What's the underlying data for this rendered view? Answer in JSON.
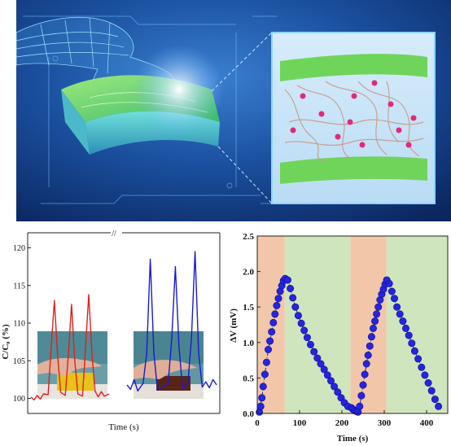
{
  "chart_data": [
    {
      "type": "line",
      "xlabel": "Time (s)",
      "ylabel": "C/C₀ (%)",
      "ylim": [
        98,
        122
      ],
      "yticks": [
        "100",
        "105",
        "110",
        "115",
        "120"
      ],
      "grid": false,
      "axis_break": true,
      "series": [
        {
          "color": "#e0201b",
          "x": [
            0,
            0.4,
            0.8,
            1.2,
            1.6,
            2.2,
            2.6,
            3.0,
            3.4,
            3.8,
            4.4,
            4.8,
            5.2,
            5.6,
            6.0,
            6.6,
            7.0,
            7.4,
            7.8,
            8.2,
            8.6,
            9.0,
            9.4,
            10
          ],
          "values": [
            100.2,
            99.8,
            100.4,
            99.9,
            100.6,
            100.5,
            107,
            113,
            106,
            100.8,
            100.4,
            106,
            112.5,
            105,
            100.6,
            100.3,
            107,
            113.8,
            106,
            101,
            100.2,
            100.9,
            100.3,
            100.6
          ]
        },
        {
          "color": "#1a1ad2",
          "x": [
            0,
            0.4,
            0.8,
            1.2,
            1.8,
            2.2,
            2.6,
            3.0,
            3.4,
            4.0,
            4.6,
            5.0,
            5.4,
            5.8,
            6.2,
            6.8,
            7.2,
            7.6,
            8.0,
            8.4,
            8.8,
            9.2,
            9.6,
            10
          ],
          "values": [
            101.8,
            101.2,
            102.5,
            101,
            102,
            106,
            118.5,
            106,
            101.2,
            101.5,
            102,
            108,
            117.5,
            107,
            101.3,
            102,
            108,
            119.5,
            106,
            101.5,
            102.2,
            101.4,
            102.5,
            101.8
          ]
        }
      ]
    },
    {
      "type": "scatter",
      "xlabel": "Time (s)",
      "ylabel": "ΔV (mV)",
      "xlim": [
        0,
        450
      ],
      "ylim": [
        0,
        2.5
      ],
      "xticks": [
        "0",
        "100",
        "200",
        "300",
        "400"
      ],
      "yticks": [
        "0.0",
        "0.5",
        "1.0",
        "1.5",
        "2.0",
        "2.5"
      ],
      "grid": false,
      "bands": [
        {
          "x0": 0,
          "x1": 65,
          "color": "#f2c6a8"
        },
        {
          "x0": 65,
          "x1": 220,
          "color": "#cfe5bd"
        },
        {
          "x0": 220,
          "x1": 305,
          "color": "#f2c6a8"
        },
        {
          "x0": 305,
          "x1": 450,
          "color": "#cfe5bd"
        }
      ],
      "series": [
        {
          "color": "#2525e0",
          "x": [
            5,
            8,
            11,
            14,
            18,
            22,
            26,
            30,
            34,
            38,
            42,
            46,
            50,
            54,
            58,
            62,
            66,
            72,
            78,
            84,
            90,
            97,
            104,
            111,
            118,
            126,
            134,
            142,
            150,
            158,
            166,
            174,
            182,
            190,
            198,
            206,
            214,
            222,
            226,
            230,
            234,
            238,
            242,
            246,
            250,
            254,
            258,
            262,
            266,
            270,
            274,
            278,
            282,
            286,
            290,
            294,
            298,
            302,
            306,
            312,
            318,
            324,
            330,
            337,
            344,
            351,
            358,
            365,
            372,
            380,
            388,
            396,
            404,
            412,
            420,
            428
          ],
          "values": [
            0.02,
            0.1,
            0.22,
            0.38,
            0.55,
            0.72,
            0.9,
            1.02,
            1.15,
            1.28,
            1.4,
            1.52,
            1.62,
            1.72,
            1.8,
            1.87,
            1.9,
            1.88,
            1.76,
            1.63,
            1.5,
            1.38,
            1.27,
            1.17,
            1.07,
            0.97,
            0.87,
            0.78,
            0.7,
            0.62,
            0.54,
            0.46,
            0.38,
            0.3,
            0.22,
            0.15,
            0.1,
            0.08,
            0.06,
            0.04,
            0.03,
            0.02,
            0.1,
            0.25,
            0.4,
            0.55,
            0.7,
            0.82,
            0.95,
            1.08,
            1.2,
            1.3,
            1.4,
            1.5,
            1.6,
            1.68,
            1.75,
            1.82,
            1.88,
            1.83,
            1.72,
            1.62,
            1.5,
            1.4,
            1.3,
            1.2,
            1.1,
            0.99,
            0.88,
            0.77,
            0.65,
            0.54,
            0.43,
            0.32,
            0.2,
            0.1
          ]
        }
      ]
    }
  ]
}
